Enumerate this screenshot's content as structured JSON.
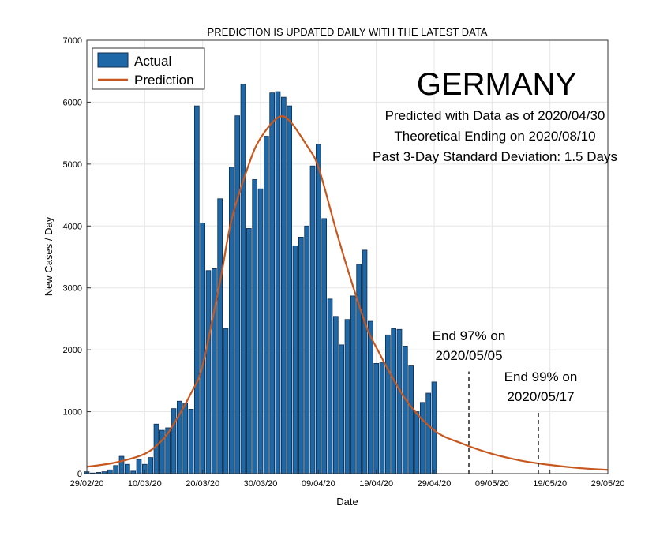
{
  "chart_data": {
    "type": "bar+line",
    "title": "PREDICTION IS UPDATED DAILY WITH THE LATEST DATA",
    "xlabel": "Date",
    "ylabel": "New Cases / Day",
    "ylim": [
      0,
      7000
    ],
    "xlim_days": [
      0,
      90
    ],
    "yticks": [
      0,
      1000,
      2000,
      3000,
      4000,
      5000,
      6000,
      7000
    ],
    "xtick_labels": [
      "29/02/20",
      "10/03/20",
      "20/03/20",
      "30/03/20",
      "09/04/20",
      "19/04/20",
      "29/04/20",
      "09/05/20",
      "19/05/20",
      "29/05/20"
    ],
    "grid": true,
    "legend": {
      "placement": "top-left",
      "entries": [
        "Actual",
        "Prediction"
      ]
    },
    "series": [
      {
        "name": "Actual",
        "type": "bar",
        "color": "#1f68a8",
        "start_date": "29/02/20",
        "values": [
          30,
          10,
          20,
          30,
          60,
          130,
          280,
          150,
          40,
          230,
          150,
          260,
          800,
          700,
          740,
          1050,
          1170,
          1140,
          1040,
          5940,
          4050,
          3280,
          3310,
          4440,
          2340,
          4950,
          5780,
          6290,
          3960,
          4750,
          4600,
          5450,
          6150,
          6170,
          6080,
          5940,
          3680,
          3820,
          4000,
          4970,
          5320,
          4120,
          2820,
          2540,
          2080,
          2490,
          2870,
          3380,
          3610,
          2460,
          1780,
          1790,
          2240,
          2340,
          2330,
          2060,
          1740,
          1000,
          1150,
          1300,
          1480
        ]
      },
      {
        "name": "Prediction",
        "type": "line",
        "color": "#c8571e",
        "x_days": [
          0,
          5,
          10,
          13,
          15,
          18,
          20,
          23,
          25,
          28,
          30,
          33,
          35,
          38,
          40,
          43,
          45,
          48,
          50,
          55,
          60,
          65,
          70,
          75,
          80,
          85,
          90
        ],
        "values": [
          110,
          180,
          320,
          540,
          800,
          1300,
          1750,
          3100,
          4100,
          5000,
          5420,
          5750,
          5700,
          5300,
          4950,
          3950,
          3320,
          2450,
          2040,
          1210,
          700,
          480,
          320,
          210,
          140,
          90,
          60
        ]
      }
    ],
    "annotations": {
      "country": "GERMANY",
      "line1": "Predicted with Data as of 2020/04/30",
      "line2": "Theoretical Ending on 2020/08/10",
      "line3": "Past 3-Day Standard Deviation: 1.5 Days",
      "end97_label": "End 97% on",
      "end97_date": "2020/05/05",
      "end97_day": 66,
      "end97_height": 1650,
      "end99_label": "End 99% on",
      "end99_date": "2020/05/17",
      "end99_day": 78,
      "end99_height": 1000
    }
  }
}
